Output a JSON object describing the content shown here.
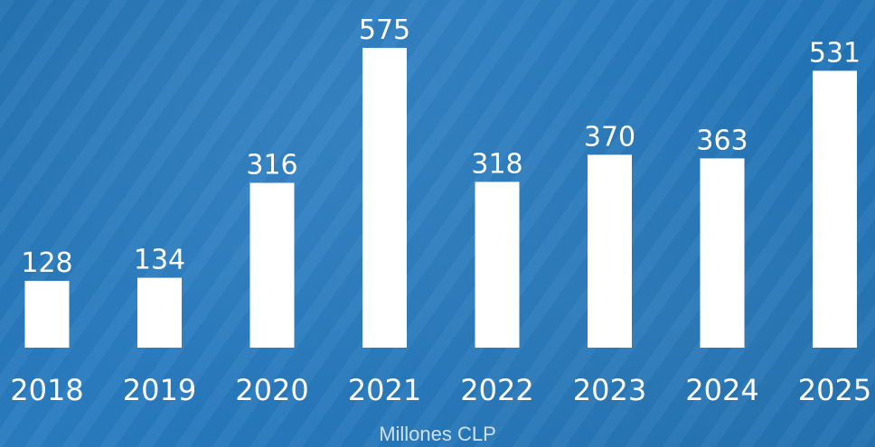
{
  "chart_data": {
    "type": "bar",
    "categories": [
      "2018",
      "2019",
      "2020",
      "2021",
      "2022",
      "2023",
      "2024",
      "2025"
    ],
    "values": [
      128,
      134,
      316,
      575,
      318,
      370,
      363,
      531
    ],
    "title": "",
    "xlabel": "Millones CLP",
    "ylabel": "",
    "ylim": [
      0,
      575
    ],
    "grid": false,
    "legend": "none"
  },
  "colors": {
    "bar": "#ffffff",
    "text": "#ffffff",
    "unit_text": "#cfe0ef",
    "background": "#2476ba"
  }
}
